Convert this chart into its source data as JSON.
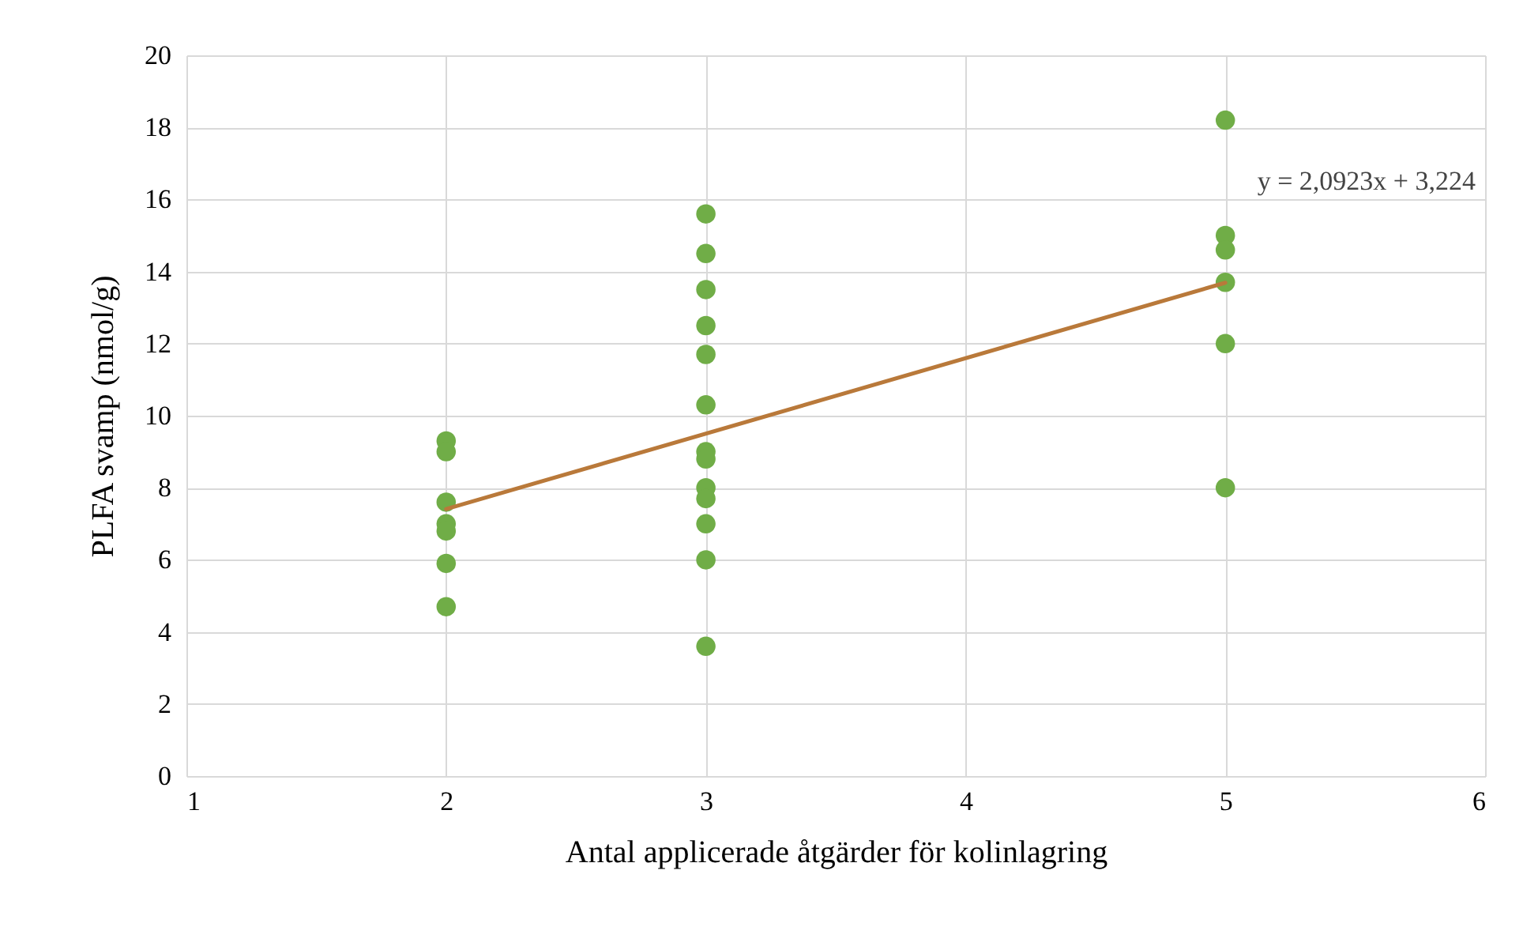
{
  "chart_data": {
    "type": "scatter",
    "xlabel": "Antal applicerade åtgärder för kolinlagring",
    "ylabel": "PLFA svamp (nmol/g)",
    "xlim": [
      1,
      6
    ],
    "xticks": [
      1,
      2,
      3,
      4,
      5,
      6
    ],
    "ylim": [
      0,
      20
    ],
    "yticks": [
      0,
      2,
      4,
      6,
      8,
      10,
      12,
      14,
      16,
      18,
      20
    ],
    "grid": true,
    "marker": "circle",
    "series": [
      {
        "color": "#70ad47",
        "x": [
          2,
          2,
          2,
          2,
          2,
          2,
          2,
          3,
          3,
          3,
          3,
          3,
          3,
          3,
          3,
          3,
          3,
          3,
          3,
          3,
          5,
          5,
          5,
          5,
          5,
          5
        ],
        "values": [
          9.3,
          9.0,
          7.6,
          7.0,
          6.8,
          5.9,
          4.7,
          15.6,
          14.5,
          13.5,
          12.5,
          11.7,
          10.3,
          9.0,
          8.8,
          8.0,
          7.7,
          7.0,
          6.0,
          3.6,
          18.2,
          15.0,
          14.6,
          13.7,
          12.0,
          8.0
        ]
      },
      {
        "type": "line",
        "color": "#b9793a",
        "marker": "none",
        "x": [
          2,
          5
        ],
        "values": [
          7.41,
          13.69
        ]
      }
    ],
    "annotations": [
      "y = 2,0923x + 3,224"
    ]
  }
}
